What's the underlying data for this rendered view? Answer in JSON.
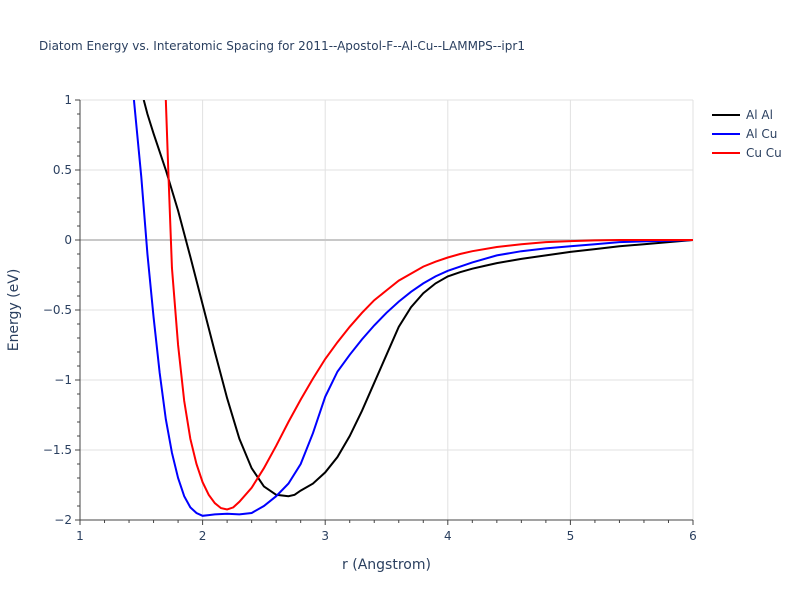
{
  "chart_data": {
    "type": "line",
    "title": "Diatom Energy vs. Interatomic Spacing for 2011--Apostol-F--Al-Cu--LAMMPS--ipr1",
    "xlabel": "r (Angstrom)",
    "ylabel": "Energy (eV)",
    "xlim": [
      1,
      6
    ],
    "ylim": [
      -2,
      1
    ],
    "xticks": [
      1,
      2,
      3,
      4,
      5,
      6
    ],
    "xtick_labels": [
      "1",
      "2",
      "3",
      "4",
      "5",
      "6"
    ],
    "yticks": [
      1,
      0.5,
      0,
      -0.5,
      -1,
      -1.5,
      -2
    ],
    "ytick_labels": [
      "1",
      "0.5",
      "0",
      "−0.5",
      "−1",
      "−1.5",
      "−2"
    ],
    "grid": true,
    "legend_position": "top-right",
    "series": [
      {
        "name": "Al Al",
        "color": "#000000",
        "x": [
          1.52,
          1.55,
          1.6,
          1.7,
          1.8,
          1.9,
          2.0,
          2.1,
          2.2,
          2.3,
          2.4,
          2.5,
          2.6,
          2.7,
          2.75,
          2.8,
          2.9,
          3.0,
          3.1,
          3.2,
          3.3,
          3.4,
          3.5,
          3.6,
          3.7,
          3.8,
          3.9,
          4.0,
          4.1,
          4.2,
          4.3,
          4.4,
          4.5,
          4.6,
          4.8,
          5.0,
          5.2,
          5.4,
          5.6,
          5.8,
          6.0
        ],
        "y": [
          1.0,
          0.9,
          0.76,
          0.5,
          0.21,
          -0.12,
          -0.46,
          -0.8,
          -1.13,
          -1.42,
          -1.63,
          -1.76,
          -1.82,
          -1.83,
          -1.82,
          -1.79,
          -1.74,
          -1.66,
          -1.55,
          -1.4,
          -1.22,
          -1.02,
          -0.82,
          -0.62,
          -0.48,
          -0.38,
          -0.31,
          -0.26,
          -0.23,
          -0.205,
          -0.185,
          -0.165,
          -0.15,
          -0.135,
          -0.11,
          -0.085,
          -0.065,
          -0.045,
          -0.03,
          -0.015,
          0.0
        ]
      },
      {
        "name": "Al Cu",
        "color": "#0000ff",
        "x": [
          1.44,
          1.5,
          1.55,
          1.6,
          1.65,
          1.7,
          1.75,
          1.8,
          1.85,
          1.9,
          1.95,
          2.0,
          2.05,
          2.1,
          2.2,
          2.3,
          2.4,
          2.5,
          2.6,
          2.7,
          2.8,
          2.9,
          3.0,
          3.1,
          3.2,
          3.3,
          3.4,
          3.5,
          3.6,
          3.7,
          3.8,
          3.9,
          4.0,
          4.2,
          4.4,
          4.6,
          4.8,
          5.0,
          5.2,
          5.4,
          5.6,
          5.8,
          6.0
        ],
        "y": [
          1.0,
          0.45,
          -0.1,
          -0.55,
          -0.95,
          -1.28,
          -1.52,
          -1.7,
          -1.83,
          -1.91,
          -1.95,
          -1.97,
          -1.965,
          -1.96,
          -1.955,
          -1.96,
          -1.95,
          -1.9,
          -1.83,
          -1.74,
          -1.6,
          -1.38,
          -1.12,
          -0.94,
          -0.82,
          -0.71,
          -0.61,
          -0.52,
          -0.44,
          -0.37,
          -0.31,
          -0.26,
          -0.22,
          -0.16,
          -0.11,
          -0.08,
          -0.06,
          -0.045,
          -0.03,
          -0.015,
          -0.01,
          -0.005,
          0.0
        ]
      },
      {
        "name": "Cu Cu",
        "color": "#ff0000",
        "x": [
          1.7,
          1.72,
          1.75,
          1.8,
          1.85,
          1.9,
          1.95,
          2.0,
          2.05,
          2.1,
          2.15,
          2.2,
          2.25,
          2.3,
          2.4,
          2.5,
          2.6,
          2.7,
          2.8,
          2.9,
          3.0,
          3.1,
          3.2,
          3.3,
          3.4,
          3.5,
          3.6,
          3.7,
          3.8,
          3.9,
          4.0,
          4.1,
          4.2,
          4.4,
          4.6,
          4.8,
          5.0,
          5.2,
          5.4,
          5.6,
          5.8,
          6.0
        ],
        "y": [
          1.0,
          0.5,
          -0.2,
          -0.75,
          -1.15,
          -1.42,
          -1.6,
          -1.73,
          -1.82,
          -1.88,
          -1.915,
          -1.925,
          -1.91,
          -1.87,
          -1.77,
          -1.63,
          -1.47,
          -1.3,
          -1.14,
          -0.99,
          -0.85,
          -0.73,
          -0.62,
          -0.52,
          -0.43,
          -0.36,
          -0.29,
          -0.24,
          -0.19,
          -0.155,
          -0.125,
          -0.1,
          -0.08,
          -0.05,
          -0.03,
          -0.015,
          -0.008,
          -0.003,
          0.0,
          0.0,
          0.0,
          0.0
        ]
      }
    ]
  }
}
